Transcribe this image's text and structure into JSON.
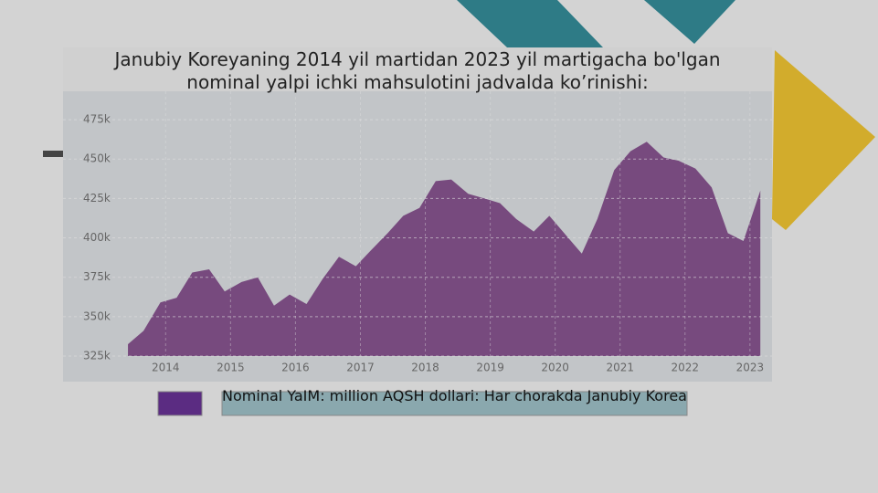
{
  "chart_data": {
    "type": "area",
    "title": "Janubiy Koreyaning 2014 yil martidan 2023 yil martigacha bo'lgan nominal yalpi ichki mahsulotini jadvalda ko’rinishi:",
    "xlim": [
      2012.42,
      2023.34
    ],
    "xticks": [
      2014,
      2015,
      2016,
      2017,
      2018,
      2019,
      2020,
      2021,
      2022,
      2023
    ],
    "ylim": [
      325000,
      493000
    ],
    "yticks": [
      {
        "value": 325000,
        "label": "325k"
      },
      {
        "value": 350000,
        "label": "350k"
      },
      {
        "value": 375000,
        "label": "375k"
      },
      {
        "value": 400000,
        "label": "400k"
      },
      {
        "value": 425000,
        "label": "425k"
      },
      {
        "value": 450000,
        "label": "450k"
      },
      {
        "value": 475000,
        "label": "475k"
      }
    ],
    "grid": true,
    "series": [
      {
        "name": "Nominal YaIM: million AQSH dollari: Har chorakda Janubiy Korea",
        "color": "#774a7e",
        "x": [
          2013.42,
          2013.66,
          2013.92,
          2014.17,
          2014.41,
          2014.67,
          2014.91,
          2015.17,
          2015.42,
          2015.67,
          2015.91,
          2016.17,
          2016.42,
          2016.67,
          2016.93,
          2017.16,
          2017.42,
          2017.66,
          2017.91,
          2018.16,
          2018.4,
          2018.66,
          2018.91,
          2019.15,
          2019.4,
          2019.67,
          2019.91,
          2020.16,
          2020.41,
          2020.65,
          2020.91,
          2021.16,
          2021.41,
          2021.67,
          2021.9,
          2022.16,
          2022.41,
          2022.66,
          2022.9,
          2023.16
        ],
        "values": [
          332500,
          341000,
          359000,
          362000,
          378000,
          380000,
          366000,
          372000,
          375000,
          357000,
          364000,
          358000,
          374000,
          388000,
          382000,
          392000,
          403000,
          414000,
          419000,
          436000,
          437000,
          428000,
          425000,
          422000,
          412000,
          404000,
          414000,
          402000,
          390000,
          412000,
          443000,
          455000,
          461000,
          451000,
          449000,
          444000,
          432000,
          403000,
          398000,
          430000
        ]
      }
    ]
  }
}
